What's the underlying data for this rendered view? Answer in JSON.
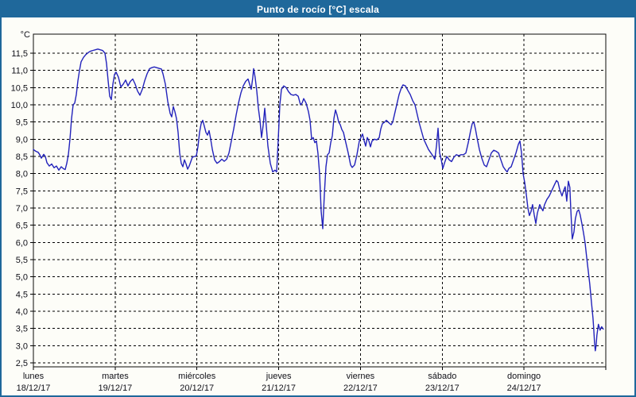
{
  "window": {
    "title": "Punto de rocío [°C] escala"
  },
  "colors": {
    "titlebar_bg": "#1f689b",
    "window_border": "#1f689b",
    "title_text": "#ffffff",
    "background": "#fdfdf8",
    "grid": "#000000",
    "axis_text": "#101018",
    "line": "#2222bb"
  },
  "chart_data": {
    "type": "line",
    "title": "Punto de rocío [°C] escala",
    "y_unit_label": "°C",
    "ylabel": "",
    "xlabel": "",
    "ylim": [
      2.5,
      11.5
    ],
    "y_tick_step": 0.5,
    "grid": true,
    "legend": false,
    "y_tick_labels": [
      "11,5",
      "11,0",
      "10,5",
      "10,0",
      "9,5",
      "9,0",
      "8,5",
      "8,0",
      "7,5",
      "7,0",
      "6,5",
      "6,0",
      "5,5",
      "5,0",
      "4,5",
      "4,0",
      "3,5",
      "3,0",
      "2,5"
    ],
    "x_days": [
      {
        "weekday": "lunes",
        "date": "18/12/17"
      },
      {
        "weekday": "martes",
        "date": "19/12/17"
      },
      {
        "weekday": "miércoles",
        "date": "20/12/17"
      },
      {
        "weekday": "jueves",
        "date": "21/12/17"
      },
      {
        "weekday": "viernes",
        "date": "22/12/17"
      },
      {
        "weekday": "sábado",
        "date": "23/12/17"
      },
      {
        "weekday": "domingo",
        "date": "24/12/17"
      }
    ],
    "series": [
      {
        "name": "Punto de rocío",
        "color": "#2222bb",
        "x_unit": "days_since_start",
        "points": [
          [
            0.0,
            8.7
          ],
          [
            0.029,
            8.65
          ],
          [
            0.058,
            8.62
          ],
          [
            0.078,
            8.55
          ],
          [
            0.097,
            8.45
          ],
          [
            0.126,
            8.56
          ],
          [
            0.146,
            8.5
          ],
          [
            0.165,
            8.32
          ],
          [
            0.194,
            8.22
          ],
          [
            0.224,
            8.28
          ],
          [
            0.253,
            8.17
          ],
          [
            0.282,
            8.22
          ],
          [
            0.311,
            8.1
          ],
          [
            0.34,
            8.2
          ],
          [
            0.369,
            8.14
          ],
          [
            0.389,
            8.12
          ],
          [
            0.408,
            8.3
          ],
          [
            0.428,
            8.55
          ],
          [
            0.447,
            9.0
          ],
          [
            0.467,
            9.6
          ],
          [
            0.486,
            10.0
          ],
          [
            0.506,
            10.05
          ],
          [
            0.525,
            10.3
          ],
          [
            0.544,
            10.7
          ],
          [
            0.564,
            11.0
          ],
          [
            0.583,
            11.25
          ],
          [
            0.613,
            11.38
          ],
          [
            0.642,
            11.46
          ],
          [
            0.671,
            11.52
          ],
          [
            0.7,
            11.56
          ],
          [
            0.729,
            11.58
          ],
          [
            0.758,
            11.6
          ],
          [
            0.788,
            11.62
          ],
          [
            0.817,
            11.6
          ],
          [
            0.846,
            11.58
          ],
          [
            0.875,
            11.5
          ],
          [
            0.894,
            11.2
          ],
          [
            0.914,
            10.7
          ],
          [
            0.933,
            10.25
          ],
          [
            0.953,
            10.15
          ],
          [
            0.972,
            10.6
          ],
          [
            0.992,
            10.88
          ],
          [
            1.011,
            10.95
          ],
          [
            1.04,
            10.8
          ],
          [
            1.069,
            10.52
          ],
          [
            1.099,
            10.6
          ],
          [
            1.128,
            10.72
          ],
          [
            1.157,
            10.55
          ],
          [
            1.186,
            10.68
          ],
          [
            1.215,
            10.75
          ],
          [
            1.244,
            10.6
          ],
          [
            1.274,
            10.4
          ],
          [
            1.303,
            10.28
          ],
          [
            1.332,
            10.45
          ],
          [
            1.361,
            10.7
          ],
          [
            1.39,
            10.9
          ],
          [
            1.42,
            11.05
          ],
          [
            1.449,
            11.08
          ],
          [
            1.478,
            11.1
          ],
          [
            1.507,
            11.08
          ],
          [
            1.536,
            11.06
          ],
          [
            1.565,
            11.04
          ],
          [
            1.585,
            10.9
          ],
          [
            1.614,
            10.6
          ],
          [
            1.643,
            10.1
          ],
          [
            1.672,
            9.75
          ],
          [
            1.692,
            9.65
          ],
          [
            1.711,
            9.95
          ],
          [
            1.731,
            9.8
          ],
          [
            1.75,
            9.6
          ],
          [
            1.769,
            9.2
          ],
          [
            1.789,
            8.6
          ],
          [
            1.808,
            8.3
          ],
          [
            1.828,
            8.2
          ],
          [
            1.847,
            8.4
          ],
          [
            1.867,
            8.28
          ],
          [
            1.886,
            8.13
          ],
          [
            1.906,
            8.22
          ],
          [
            1.925,
            8.35
          ],
          [
            1.944,
            8.48
          ],
          [
            1.974,
            8.5
          ],
          [
            1.993,
            8.52
          ],
          [
            2.013,
            8.8
          ],
          [
            2.032,
            9.2
          ],
          [
            2.051,
            9.45
          ],
          [
            2.071,
            9.55
          ],
          [
            2.09,
            9.38
          ],
          [
            2.11,
            9.2
          ],
          [
            2.129,
            9.12
          ],
          [
            2.149,
            9.25
          ],
          [
            2.168,
            9.0
          ],
          [
            2.188,
            8.7
          ],
          [
            2.217,
            8.4
          ],
          [
            2.246,
            8.3
          ],
          [
            2.275,
            8.35
          ],
          [
            2.304,
            8.42
          ],
          [
            2.333,
            8.36
          ],
          [
            2.363,
            8.42
          ],
          [
            2.392,
            8.6
          ],
          [
            2.421,
            8.95
          ],
          [
            2.45,
            9.3
          ],
          [
            2.479,
            9.7
          ],
          [
            2.508,
            10.05
          ],
          [
            2.538,
            10.35
          ],
          [
            2.567,
            10.55
          ],
          [
            2.596,
            10.68
          ],
          [
            2.625,
            10.75
          ],
          [
            2.644,
            10.6
          ],
          [
            2.664,
            10.45
          ],
          [
            2.683,
            10.8
          ],
          [
            2.693,
            11.05
          ],
          [
            2.712,
            10.8
          ],
          [
            2.732,
            10.4
          ],
          [
            2.751,
            9.9
          ],
          [
            2.771,
            9.55
          ],
          [
            2.79,
            9.05
          ],
          [
            2.81,
            9.4
          ],
          [
            2.829,
            9.9
          ],
          [
            2.848,
            9.4
          ],
          [
            2.868,
            8.8
          ],
          [
            2.897,
            8.3
          ],
          [
            2.926,
            8.05
          ],
          [
            2.955,
            8.1
          ],
          [
            2.975,
            8.05
          ],
          [
            2.994,
            9.0
          ],
          [
            3.014,
            10.0
          ],
          [
            3.033,
            10.45
          ],
          [
            3.062,
            10.55
          ],
          [
            3.092,
            10.5
          ],
          [
            3.121,
            10.38
          ],
          [
            3.15,
            10.3
          ],
          [
            3.179,
            10.28
          ],
          [
            3.208,
            10.3
          ],
          [
            3.238,
            10.25
          ],
          [
            3.267,
            10.0
          ],
          [
            3.286,
            10.05
          ],
          [
            3.306,
            10.18
          ],
          [
            3.335,
            10.05
          ],
          [
            3.364,
            9.8
          ],
          [
            3.383,
            9.55
          ],
          [
            3.403,
            9.0
          ],
          [
            3.422,
            9.05
          ],
          [
            3.442,
            8.9
          ],
          [
            3.461,
            8.95
          ],
          [
            3.48,
            8.6
          ],
          [
            3.5,
            8.0
          ],
          [
            3.519,
            6.9
          ],
          [
            3.539,
            6.4
          ],
          [
            3.558,
            7.4
          ],
          [
            3.578,
            8.2
          ],
          [
            3.597,
            8.55
          ],
          [
            3.617,
            8.6
          ],
          [
            3.636,
            8.9
          ],
          [
            3.656,
            9.1
          ],
          [
            3.675,
            9.6
          ],
          [
            3.694,
            9.85
          ],
          [
            3.714,
            9.7
          ],
          [
            3.733,
            9.5
          ],
          [
            3.753,
            9.42
          ],
          [
            3.772,
            9.28
          ],
          [
            3.792,
            9.2
          ],
          [
            3.821,
            8.9
          ],
          [
            3.85,
            8.6
          ],
          [
            3.879,
            8.25
          ],
          [
            3.899,
            8.18
          ],
          [
            3.928,
            8.25
          ],
          [
            3.957,
            8.55
          ],
          [
            3.986,
            8.95
          ],
          [
            4.006,
            9.05
          ],
          [
            4.025,
            9.15
          ],
          [
            4.045,
            8.95
          ],
          [
            4.064,
            8.8
          ],
          [
            4.083,
            9.05
          ],
          [
            4.103,
            8.95
          ],
          [
            4.122,
            8.78
          ],
          [
            4.142,
            8.95
          ],
          [
            4.171,
            9.0
          ],
          [
            4.2,
            8.98
          ],
          [
            4.229,
            9.05
          ],
          [
            4.249,
            9.3
          ],
          [
            4.268,
            9.45
          ],
          [
            4.297,
            9.5
          ],
          [
            4.317,
            9.55
          ],
          [
            4.346,
            9.48
          ],
          [
            4.375,
            9.42
          ],
          [
            4.394,
            9.5
          ],
          [
            4.424,
            9.8
          ],
          [
            4.443,
            10.0
          ],
          [
            4.472,
            10.3
          ],
          [
            4.501,
            10.5
          ],
          [
            4.521,
            10.58
          ],
          [
            4.55,
            10.55
          ],
          [
            4.579,
            10.42
          ],
          [
            4.608,
            10.3
          ],
          [
            4.638,
            10.12
          ],
          [
            4.667,
            10.0
          ],
          [
            4.696,
            9.7
          ],
          [
            4.715,
            9.5
          ],
          [
            4.744,
            9.25
          ],
          [
            4.774,
            9.0
          ],
          [
            4.803,
            8.85
          ],
          [
            4.832,
            8.7
          ],
          [
            4.861,
            8.6
          ],
          [
            4.89,
            8.5
          ],
          [
            4.91,
            8.42
          ],
          [
            4.929,
            8.8
          ],
          [
            4.949,
            9.32
          ],
          [
            4.968,
            8.6
          ],
          [
            4.988,
            8.4
          ],
          [
            5.007,
            8.15
          ],
          [
            5.026,
            8.3
          ],
          [
            5.056,
            8.5
          ],
          [
            5.085,
            8.4
          ],
          [
            5.114,
            8.35
          ],
          [
            5.143,
            8.48
          ],
          [
            5.172,
            8.55
          ],
          [
            5.201,
            8.52
          ],
          [
            5.231,
            8.55
          ],
          [
            5.26,
            8.55
          ],
          [
            5.289,
            8.6
          ],
          [
            5.318,
            8.9
          ],
          [
            5.347,
            9.25
          ],
          [
            5.367,
            9.45
          ],
          [
            5.386,
            9.5
          ],
          [
            5.406,
            9.3
          ],
          [
            5.425,
            9.05
          ],
          [
            5.454,
            8.7
          ],
          [
            5.483,
            8.45
          ],
          [
            5.513,
            8.25
          ],
          [
            5.542,
            8.2
          ],
          [
            5.571,
            8.4
          ],
          [
            5.6,
            8.6
          ],
          [
            5.629,
            8.68
          ],
          [
            5.658,
            8.65
          ],
          [
            5.688,
            8.6
          ],
          [
            5.717,
            8.4
          ],
          [
            5.746,
            8.2
          ],
          [
            5.775,
            8.1
          ],
          [
            5.794,
            8.05
          ],
          [
            5.814,
            8.15
          ],
          [
            5.843,
            8.2
          ],
          [
            5.872,
            8.4
          ],
          [
            5.901,
            8.6
          ],
          [
            5.931,
            8.85
          ],
          [
            5.95,
            8.95
          ],
          [
            5.969,
            8.6
          ],
          [
            5.989,
            8.0
          ],
          [
            6.008,
            7.74
          ],
          [
            6.028,
            7.4
          ],
          [
            6.047,
            7.0
          ],
          [
            6.066,
            6.78
          ],
          [
            6.086,
            6.9
          ],
          [
            6.105,
            7.1
          ],
          [
            6.125,
            6.8
          ],
          [
            6.144,
            6.55
          ],
          [
            6.163,
            6.85
          ],
          [
            6.192,
            7.1
          ],
          [
            6.212,
            7.0
          ],
          [
            6.231,
            6.92
          ],
          [
            6.251,
            7.1
          ],
          [
            6.28,
            7.25
          ],
          [
            6.309,
            7.35
          ],
          [
            6.338,
            7.5
          ],
          [
            6.367,
            7.65
          ],
          [
            6.397,
            7.8
          ],
          [
            6.416,
            7.75
          ],
          [
            6.435,
            7.55
          ],
          [
            6.464,
            7.35
          ],
          [
            6.484,
            7.5
          ],
          [
            6.503,
            7.62
          ],
          [
            6.523,
            7.2
          ],
          [
            6.542,
            7.78
          ],
          [
            6.561,
            7.6
          ],
          [
            6.571,
            7.0
          ],
          [
            6.59,
            6.1
          ],
          [
            6.61,
            6.3
          ],
          [
            6.629,
            6.7
          ],
          [
            6.649,
            6.9
          ],
          [
            6.668,
            6.95
          ],
          [
            6.687,
            6.8
          ],
          [
            6.707,
            6.55
          ],
          [
            6.726,
            6.3
          ],
          [
            6.746,
            6.0
          ],
          [
            6.765,
            5.6
          ],
          [
            6.784,
            5.2
          ],
          [
            6.804,
            4.8
          ],
          [
            6.823,
            4.3
          ],
          [
            6.843,
            3.8
          ],
          [
            6.852,
            3.5
          ],
          [
            6.862,
            3.1
          ],
          [
            6.872,
            2.85
          ],
          [
            6.881,
            3.0
          ],
          [
            6.891,
            3.3
          ],
          [
            6.91,
            3.62
          ],
          [
            6.93,
            3.45
          ],
          [
            6.949,
            3.55
          ],
          [
            6.969,
            3.48
          ]
        ]
      }
    ]
  }
}
